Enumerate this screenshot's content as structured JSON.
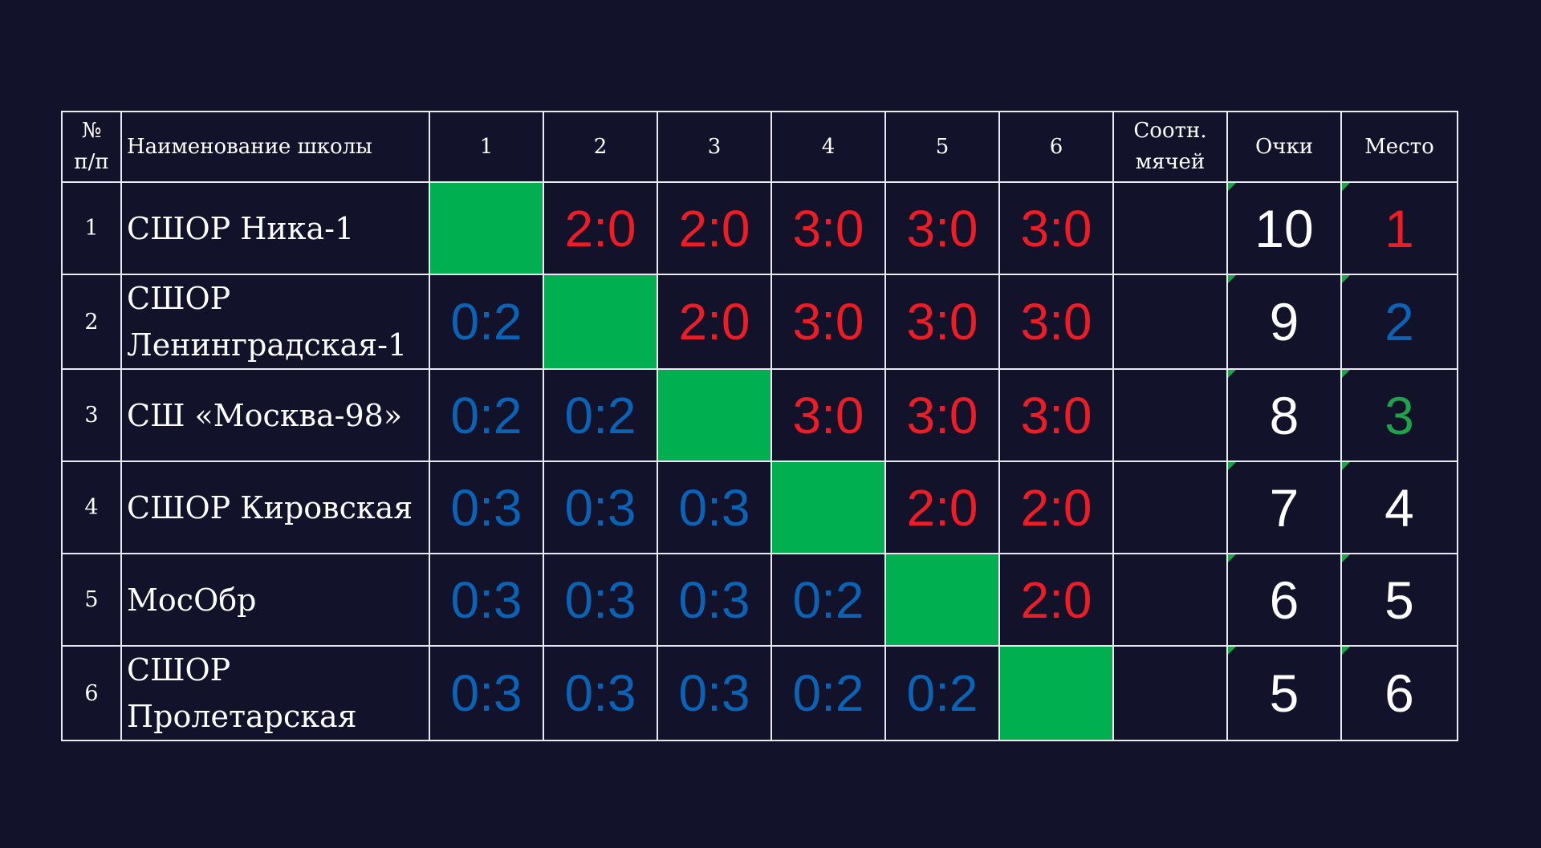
{
  "header": {
    "num_line1": "№",
    "num_line2": "п/п",
    "name": "Наименование школы",
    "games": [
      "1",
      "2",
      "3",
      "4",
      "5",
      "6"
    ],
    "ratio_line1": "Соотн.",
    "ratio_line2": "мячей",
    "points": "Очки",
    "place": "Место"
  },
  "colors": {
    "background": "#13122b",
    "win": "#ee1c24",
    "loss": "#0b63b6",
    "diagonal": "#00b050",
    "place_1": "#ee1c24",
    "place_2": "#0b63b6",
    "place_3": "#1ea34a",
    "place_other": "#ffffff"
  },
  "rows": [
    {
      "num": "1",
      "name_line1": "СШОР Ника-1",
      "name_line2": "",
      "results": [
        "",
        "2:0",
        "2:0",
        "3:0",
        "3:0",
        "3:0"
      ],
      "ratio": "",
      "points": "10",
      "place": "1"
    },
    {
      "num": "2",
      "name_line1": "СШОР",
      "name_line2": "Ленинградская-1",
      "results": [
        "0:2",
        "",
        "2:0",
        "3:0",
        "3:0",
        "3:0"
      ],
      "ratio": "",
      "points": "9",
      "place": "2"
    },
    {
      "num": "3",
      "name_line1": "СШ «Москва-98»",
      "name_line2": "",
      "results": [
        "0:2",
        "0:2",
        "",
        "3:0",
        "3:0",
        "3:0"
      ],
      "ratio": "",
      "points": "8",
      "place": "3"
    },
    {
      "num": "4",
      "name_line1": "СШОР Кировская",
      "name_line2": "",
      "results": [
        "0:3",
        "0:3",
        "0:3",
        "",
        "2:0",
        "2:0"
      ],
      "ratio": "",
      "points": "7",
      "place": "4"
    },
    {
      "num": "5",
      "name_line1": "МосОбр",
      "name_line2": "",
      "results": [
        "0:3",
        "0:3",
        "0:3",
        "0:2",
        "",
        "2:0"
      ],
      "ratio": "",
      "points": "6",
      "place": "5"
    },
    {
      "num": "6",
      "name_line1": "СШОР",
      "name_line2": "Пролетарская",
      "results": [
        "0:3",
        "0:3",
        "0:3",
        "0:2",
        "0:2",
        ""
      ],
      "ratio": "",
      "points": "5",
      "place": "6"
    }
  ]
}
